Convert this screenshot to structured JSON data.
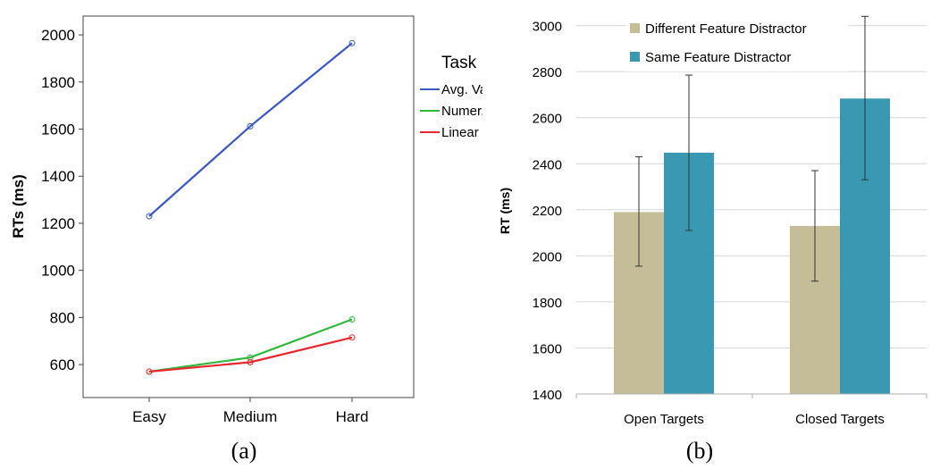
{
  "chart_data": [
    {
      "type": "line",
      "caption": "(a)",
      "categories": [
        "Easy",
        "Medium",
        "Hard"
      ],
      "ylabel": "RTs (ms)",
      "ylim": [
        460,
        2080
      ],
      "yticks": [
        600,
        800,
        1000,
        1200,
        1400,
        1600,
        1800,
        2000
      ],
      "legend_title": "Task",
      "legend_position": "right",
      "series": [
        {
          "name": "Avg. Val",
          "color": "#3a57c4",
          "values": [
            1230,
            1612,
            1965
          ]
        },
        {
          "name": "Numer.",
          "color": "#2fb83a",
          "values": [
            570,
            630,
            792
          ]
        },
        {
          "name": "Linear",
          "color": "#e8282e",
          "values": [
            570,
            610,
            715
          ]
        }
      ]
    },
    {
      "type": "bar",
      "caption": "(b)",
      "categories": [
        "Open Targets",
        "Closed Targets"
      ],
      "ylabel": "RT (ms)",
      "ylim": [
        1400,
        3080
      ],
      "yticks": [
        1400,
        1600,
        1800,
        2000,
        2200,
        2400,
        2600,
        2800,
        3000
      ],
      "grid": true,
      "legend_position": "top",
      "series": [
        {
          "name": "Different Feature Distractor",
          "color": "#c5bd98",
          "values": [
            2190,
            2130
          ],
          "err_low": [
            1955,
            1890
          ],
          "err_high": [
            2430,
            2370
          ]
        },
        {
          "name": "Same Feature Distractor",
          "color": "#3998b2",
          "values": [
            2448,
            2683
          ],
          "err_low": [
            2110,
            2330
          ],
          "err_high": [
            2785,
            3040
          ]
        }
      ]
    }
  ]
}
